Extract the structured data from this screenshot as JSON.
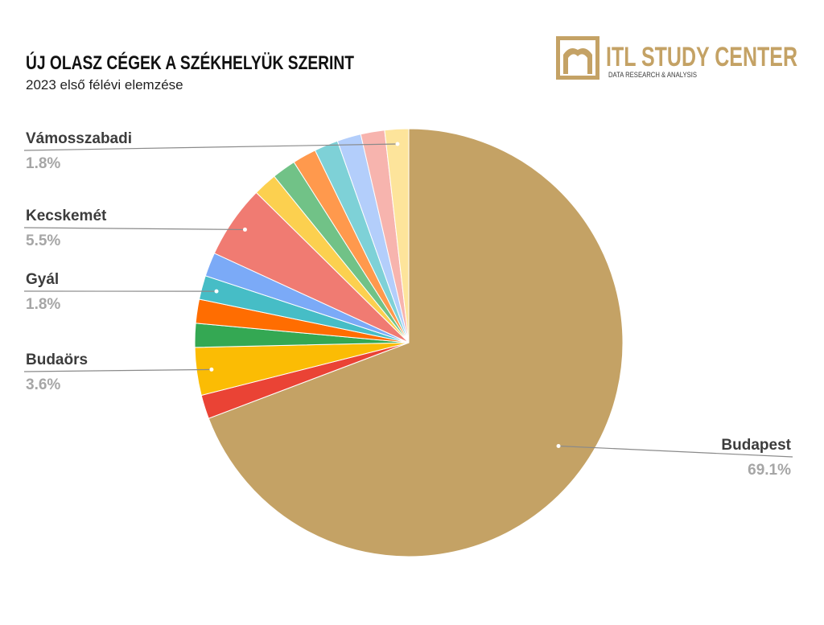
{
  "logo": {
    "name": "ITL STUDY CENTER",
    "tagline": "DATA RESEARCH & ANALYSIS"
  },
  "chart_data": {
    "type": "pie",
    "title": "ÚJ OLASZ CÉGEK A SZÉKHELYÜK SZERINT",
    "subtitle": "2023 első félévi elemzése",
    "categories": [
      "Budapest",
      null,
      "Budaörs",
      null,
      null,
      "Gyál",
      null,
      "Kecskemét",
      null,
      null,
      null,
      null,
      null,
      null,
      "Vámosszabadi"
    ],
    "values": [
      69.1,
      1.8,
      3.6,
      1.8,
      1.8,
      1.8,
      1.8,
      5.5,
      1.8,
      1.8,
      1.8,
      1.8,
      1.8,
      1.8,
      1.8
    ],
    "value_labels": [
      "69.1%",
      null,
      "3.6%",
      null,
      null,
      "1.8%",
      null,
      "5.5%",
      null,
      null,
      null,
      null,
      null,
      null,
      "1.8%"
    ],
    "colors": [
      "#c4a265",
      "#ea4335",
      "#fbbc04",
      "#34a853",
      "#ff6d01",
      "#46bdc6",
      "#7baaf7",
      "#f07b72",
      "#fcd04f",
      "#71c287",
      "#ff994d",
      "#7ed1d7",
      "#b3cefb",
      "#f7b4ae",
      "#fde49b"
    ]
  }
}
